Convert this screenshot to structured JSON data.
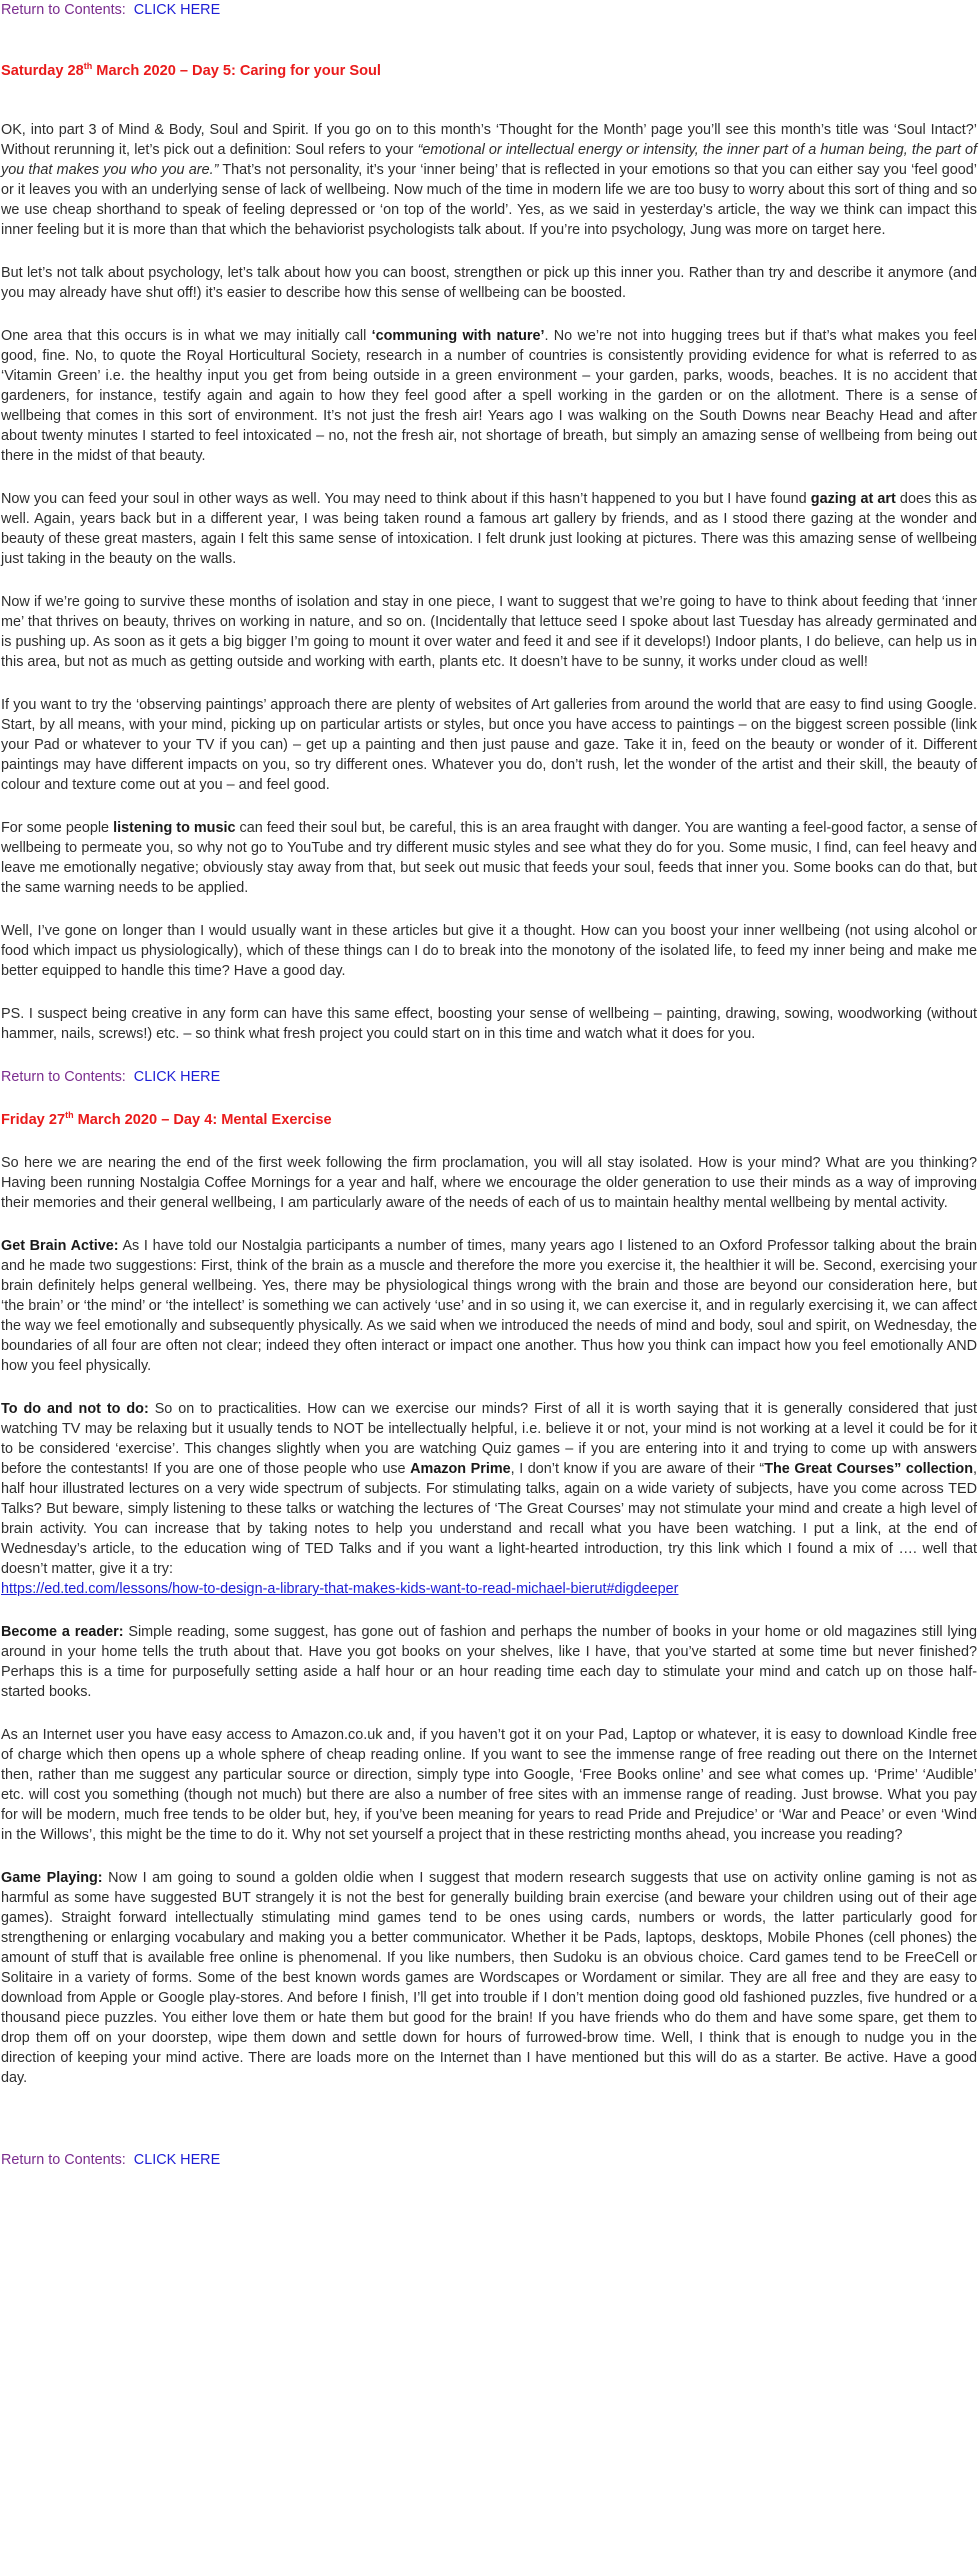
{
  "nav": {
    "return_label": "Return to Contents:",
    "click_here": "CLICK HERE"
  },
  "day5": {
    "heading_pre": "Saturday 28",
    "heading_sup": "th",
    "heading_post": " March 2020 – Day 5: Caring for your Soul",
    "p1_a": "OK, into part 3 of Mind & Body, Soul and Spirit. If you go on to this month’s ‘Thought for the Month’ page you’ll see this month’s title was ‘Soul Intact?’ Without rerunning it, let’s pick out a definition: Soul refers to your ",
    "p1_em": "“emotional or intellectual energy or intensity, the inner part of a human being, the part of you that makes you who you are.”",
    "p1_b": " That’s not personality, it’s your ‘inner being’ that is reflected in your emotions so that you can either say you ‘feel good’ or it leaves you with an underlying sense of lack of wellbeing. Now much of the time in modern life we are too busy to worry about this sort of thing and so we use cheap shorthand to speak of feeling depressed or ‘on top of the world’. Yes, as we said in yesterday’s article, the way we think can impact this inner feeling but it is more than that which the behaviorist psychologists talk about. If you’re into psychology, Jung was more on target here.",
    "p2": "But let’s not talk about psychology, let’s talk about how you can boost, strengthen or pick up this inner you. Rather than try and describe it anymore (and you may already have shut off!) it’s easier to describe how this sense of wellbeing can be boosted.",
    "p3_a": "One area that this occurs is in what we may initially call ",
    "p3_strong": "‘communing with nature’",
    "p3_b": ". No we’re not into hugging trees but if that’s what makes you feel good, fine.  No, to quote the Royal Horticultural Society, research in a number of countries is consistently providing evidence for what is referred to as ‘Vitamin Green’ i.e. the healthy input you get from being outside in a green environment – your garden, parks, woods, beaches. It is no accident that gardeners, for instance, testify again and again to how they feel good after a spell working in the garden or on the allotment.  There is a sense of wellbeing that comes in this sort of environment. It’s not just the fresh air!   Years ago I was walking on the South Downs near Beachy Head and after about twenty minutes I started to feel intoxicated – no, not the fresh air, not shortage of breath, but simply an amazing sense of wellbeing from being out there in the midst of that beauty.",
    "p4_a": "Now you can feed your soul in other ways as well. You may need to think about if this hasn’t happened to you but I have found ",
    "p4_strong": "gazing at art",
    "p4_b": " does this as well. Again, years back but in a different year, I was being taken round a famous art gallery by friends, and as I stood there gazing at the wonder and beauty of these great masters, again I felt this same sense of intoxication. I felt drunk just looking at pictures. There was this amazing sense of wellbeing just taking in the beauty on the walls.",
    "p5": "Now if we’re going to survive these months of isolation and stay in one piece, I want to suggest that we’re going to have to think about feeding that ‘inner me’ that thrives on beauty, thrives on working in nature, and so on. (Incidentally that lettuce seed I spoke about last Tuesday has already germinated and is pushing up. As soon as it gets a big bigger I’m going to mount it over water and feed it and see if it develops!)  Indoor plants, I do believe, can help us in this area, but not as much as getting outside and working with earth, plants etc. It doesn’t have to be sunny, it works under cloud as well!",
    "p6": "If you want to try the ‘observing paintings’ approach there are plenty of websites of Art galleries from around the world that are easy to find using Google. Start, by all means, with your mind, picking up on particular artists or styles, but once you have access to paintings – on the biggest screen possible (link your Pad or whatever to your TV if you can) – get up a painting and then just pause and gaze. Take it in, feed on the beauty or wonder of it. Different paintings may have different impacts on you, so try different ones. Whatever you do, don’t rush, let the wonder of the artist and their skill, the beauty of colour and texture come out at you – and feel good.",
    "p7_a": "For some people ",
    "p7_strong": "listening to music",
    "p7_b": " can feed their soul but, be careful, this is an area fraught with danger. You are wanting a feel-good factor, a sense of wellbeing to permeate you, so why not go to YouTube and try different music styles and see what they do for you. Some music, I find, can feel heavy and leave me emotionally negative; obviously stay away from that, but seek out music that feeds your soul, feeds that inner you. Some books can do that, but the same warning needs to be applied.",
    "p8": "Well, I’ve gone on longer than I would usually want in these articles but give it a thought. How can you boost your inner wellbeing (not using alcohol or food which impact us physiologically), which of these things can I do to break into the monotony of the isolated life, to feed my inner being and make me better equipped to handle this time? Have a good day.",
    "p9": "PS. I suspect being creative in any form can have this same effect, boosting your sense of wellbeing – painting, drawing, sowing, woodworking (without hammer, nails, screws!) etc. – so think what fresh project you could start on in this time and watch what it does for you."
  },
  "day4": {
    "heading_pre": "Friday 27",
    "heading_sup": "th",
    "heading_post": " March 2020 – Day 4: Mental Exercise",
    "p1": "So here we are nearing the end of the first week following the firm proclamation, you will all stay isolated. How is your mind? What are you thinking? Having been running Nostalgia Coffee Mornings for a year and half, where we encourage the older generation to use their minds as a way of improving their memories and their general wellbeing, I am particularly aware of the needs of each of us to maintain healthy mental wellbeing by mental activity.",
    "p2_strong": "Get Brain Active:",
    "p2_b": " As I have told our Nostalgia participants a number of times, many years ago I listened to an Oxford Professor talking about the brain and he made two suggestions: First, think of the brain as a muscle and therefore the more you exercise it, the healthier it will be.  Second, exercising your brain definitely helps general wellbeing. Yes, there may be physiological things wrong with the brain and those are beyond our consideration here, but ‘the brain’ or ‘the mind’ or ‘the intellect’ is something we can actively ‘use’ and in so using it, we can exercise it, and in regularly exercising it, we can affect the way we feel emotionally and subsequently physically. As we said when we introduced the needs of mind and body, soul and spirit, on Wednesday, the boundaries of all four are often not clear; indeed they often interact or impact one another. Thus how you think can impact how you feel emotionally AND how you feel physically.",
    "p3_strong": "To do and not to do:",
    "p3_b": " So on to practicalities. How can we exercise our minds? First of all it is worth saying that it is generally considered that just watching TV may be relaxing but it usually tends to NOT be intellectually helpful, i.e. believe it or not, your mind is not working at a level it could be for it to be considered ‘exercise’.  This changes slightly when you are watching Quiz games – if you are entering into it and trying to come up with answers before the contestants! If you are one of those people who use ",
    "p3_strong2": "Amazon Prime",
    "p3_c": ", I don’t know if you are aware of their “",
    "p3_strong3": "The Great Courses” collection",
    "p3_d": ", half hour illustrated lectures on a very wide spectrum of subjects. For stimulating talks, again on a wide variety of subjects, have you come across TED Talks? But beware, simply listening to these talks or watching the lectures of ‘The Great Courses’ may not stimulate your mind and create a high level of brain activity. You can increase that by taking notes to help you understand and recall what you have been watching.  I put a link, at the end of Wednesday’s article, to the education wing of TED Talks and if you want a light-hearted introduction, try this link which I found a mix of …. well that doesn’t matter, give it a try:",
    "p3_link": " https://ed.ted.com/lessons/how-to-design-a-library-that-makes-kids-want-to-read-michael-bierut#digdeeper",
    "p4_strong": "Become a reader:",
    "p4_b": " Simple reading, some suggest, has gone out of fashion and perhaps the number of books in your home or old magazines still lying around in your home tells the truth about that. Have you got books on your shelves, like I have, that you’ve started at some time but never finished? Perhaps this is a time for purposefully setting aside a half hour or an hour reading time each day to stimulate your mind and catch up on those half-started books.",
    "p5": "As an Internet user you have easy access to Amazon.co.uk and, if you haven’t got it on your Pad, Laptop or whatever, it is easy to download Kindle free of charge which then opens up a whole sphere of cheap reading online. If you want to see the immense range of free reading out there on the Internet then, rather than me suggest any particular source or direction, simply type into Google, ‘Free Books online’ and see what comes up. ‘Prime’ ‘Audible’ etc. will cost you something (though not much) but there are also a number of free sites with an immense range of reading. Just browse. What you pay for will be modern, much free tends to be older but, hey, if you’ve been meaning for years to read Pride and Prejudice’ or ‘War and Peace’ or even ‘Wind in the Willows’, this might be the time to do it. Why not set yourself a project that in these restricting months ahead, you increase you reading?",
    "p6_strong": "Game Playing:",
    "p6_b": " Now I am going to sound a golden oldie when I suggest that modern research suggests that use on activity online gaming is not as harmful as some have suggested BUT strangely it is not the best for generally building brain exercise (and beware your children using out of their age games). Straight forward intellectually stimulating mind games tend to be ones using cards, numbers or words, the latter particularly good for strengthening or enlarging vocabulary and making you a better communicator. Whether it be Pads, laptops, desktops, Mobile Phones (cell phones) the amount of stuff that is available free online is phenomenal. If you like numbers, then Sudoku is an obvious choice. Card games tend to be FreeCell or Solitaire in a variety of forms. Some of the best known words games are Wordscapes or Wordament or similar. They are all free and they are easy to download from Apple or Google play-stores.  And before I finish, I’ll get into trouble if I don’t mention doing good old fashioned puzzles, five hundred or a thousand piece puzzles. You either love them or hate them but good for the brain! If you have friends who do them and have some spare, get them to drop them off on your doorstep, wipe them down and settle down for hours of furrowed-brow time. Well, I think that is enough to nudge you in the direction of keeping your mind active. There are loads more on the Internet than I have mentioned but this will do as a starter. Be active. Have a good day."
  }
}
